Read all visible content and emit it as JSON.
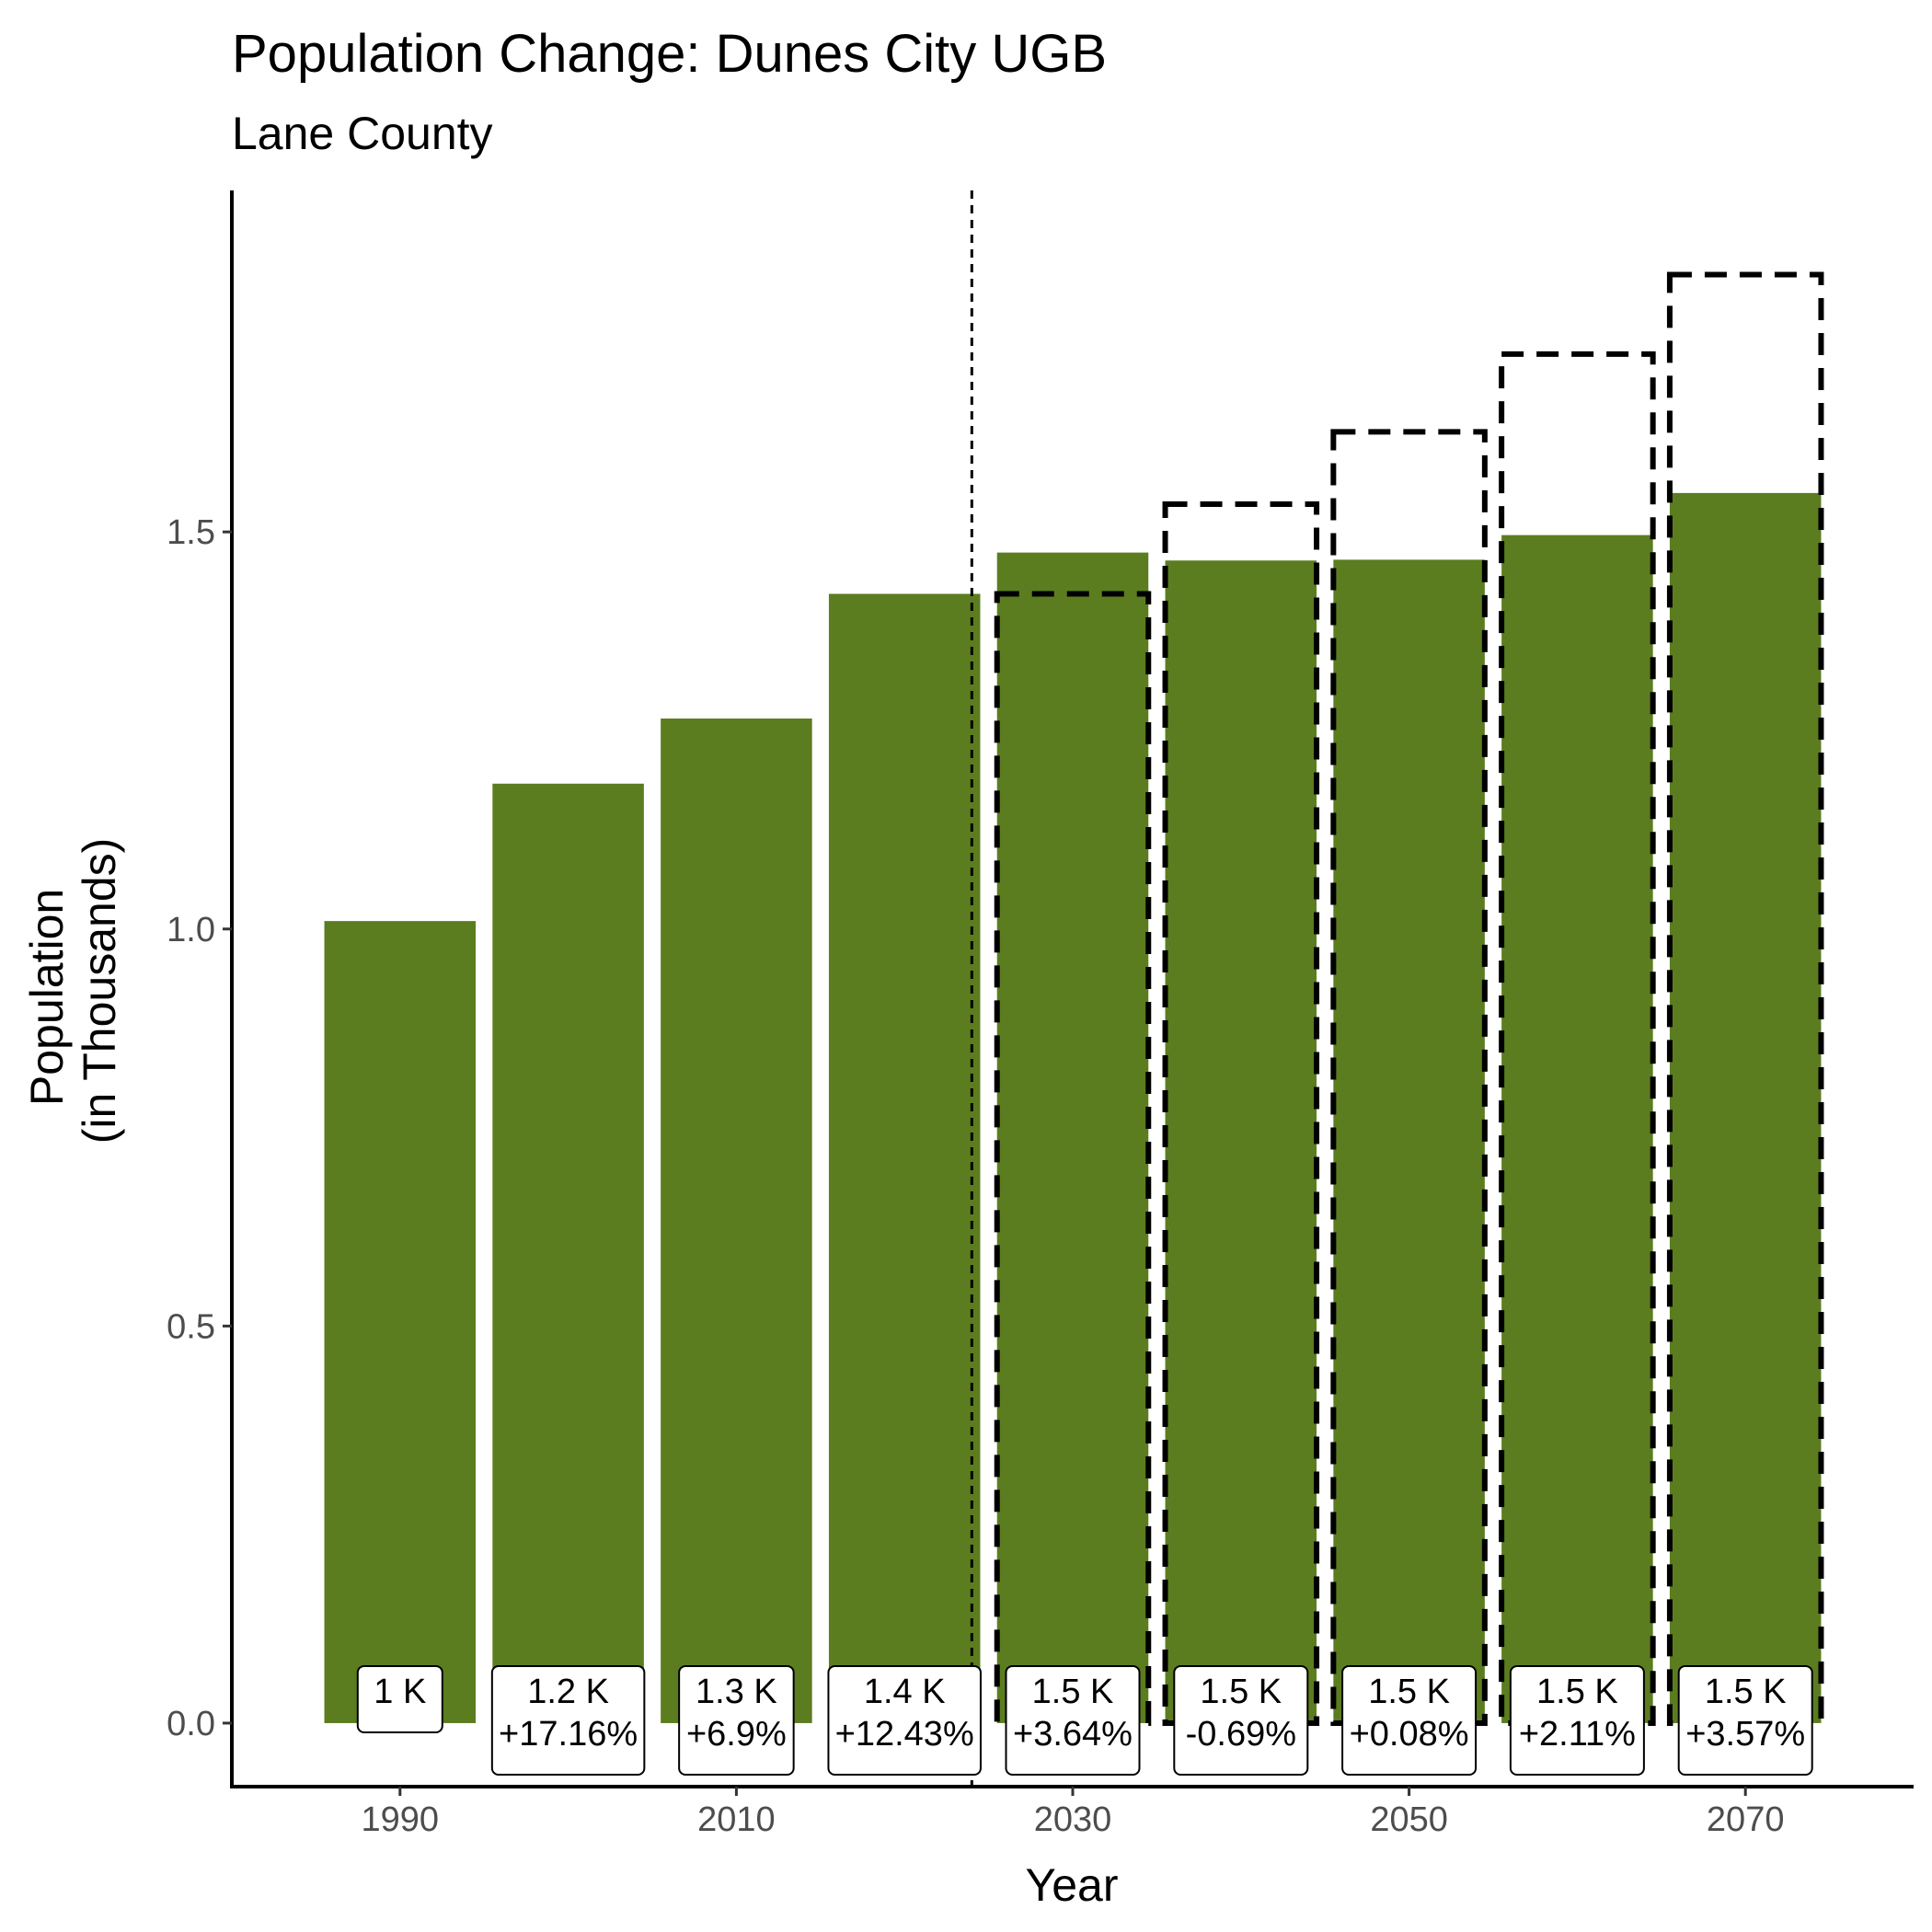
{
  "chart_data": {
    "type": "bar",
    "title": "Population Change: Dunes City UGB",
    "subtitle": "Lane County",
    "xlabel": "Year",
    "ylabel": [
      "Population",
      "(in Thousands)"
    ],
    "ylim": [
      -0.08,
      1.93
    ],
    "xlim": [
      1980,
      2080
    ],
    "yticks": [
      0.0,
      0.5,
      1.0,
      1.5
    ],
    "ytick_labels": [
      "0.0",
      "0.5",
      "1.0",
      "1.5"
    ],
    "xticks": [
      1990,
      2010,
      2030,
      2050,
      2070
    ],
    "xtick_labels": [
      "1990",
      "2010",
      "2030",
      "2050",
      "2070"
    ],
    "bar_color": "#5b7d1f",
    "divider_year": 2024,
    "series": [
      {
        "x": [
          1990,
          2000,
          2010,
          2020,
          2030,
          2040,
          2050,
          2060,
          2070
        ],
        "values": [
          1.01,
          1.183,
          1.265,
          1.422,
          1.474,
          1.464,
          1.465,
          1.496,
          1.549
        ],
        "labels": [
          "1 K",
          "1.2 K",
          "1.3 K",
          "1.4 K",
          "1.5 K",
          "1.5 K",
          "1.5 K",
          "1.5 K",
          "1.5 K"
        ],
        "pct_change": [
          "",
          "+17.16%",
          "+6.9%",
          "+12.43%",
          "+3.64%",
          "-0.69%",
          "+0.08%",
          "+2.11%",
          "+3.57%"
        ]
      },
      {
        "style": "dashed-outline",
        "x": [
          2030,
          2040,
          2050,
          2060,
          2070
        ],
        "values": [
          1.422,
          1.535,
          1.626,
          1.724,
          1.824
        ]
      }
    ]
  }
}
